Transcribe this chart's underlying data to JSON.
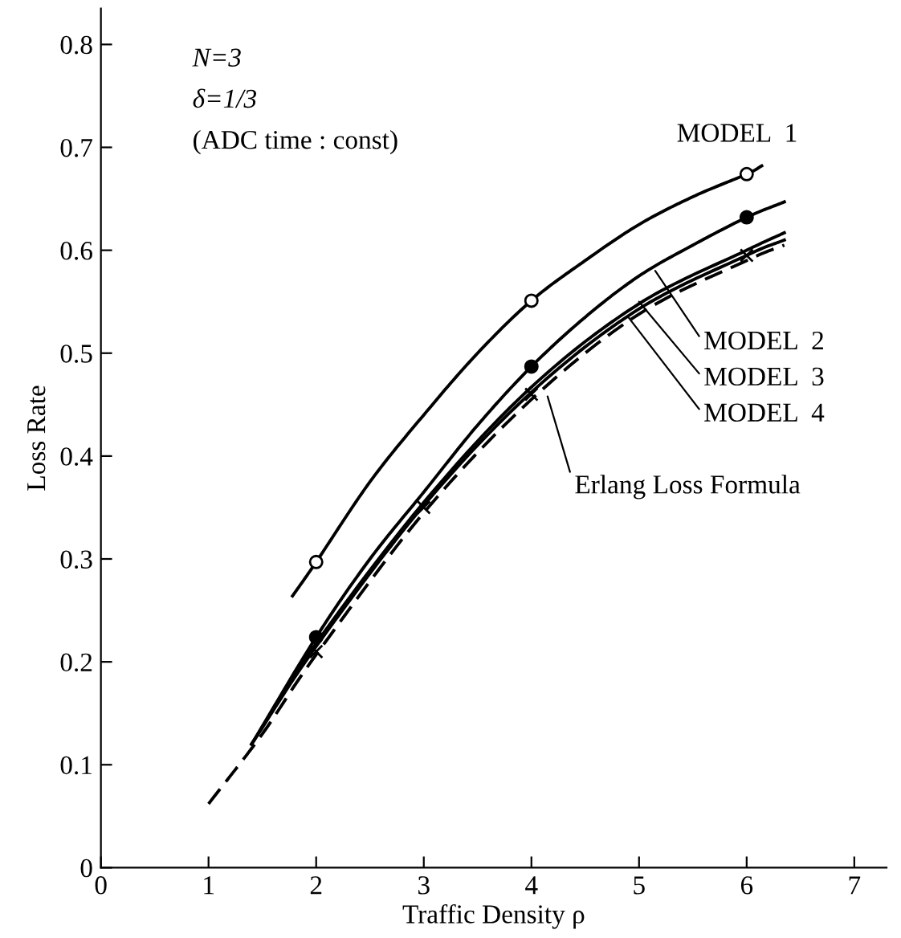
{
  "chart_data": {
    "type": "line",
    "xlabel": "Traffic Density ρ",
    "ylabel": "Loss Rate",
    "xlim": [
      0,
      7.3
    ],
    "ylim": [
      0,
      0.835
    ],
    "xticks": [
      0,
      1,
      2,
      3,
      4,
      5,
      6,
      7
    ],
    "yticks": [
      0,
      0.1,
      0.2,
      0.3,
      0.4,
      0.5,
      0.6,
      0.7,
      0.8
    ],
    "grid": false,
    "legend": false,
    "series": [
      {
        "color": "#000000",
        "line_style": "solid",
        "marker": "none",
        "x": [
          1.78,
          2,
          2.5,
          3,
          3.5,
          4,
          4.5,
          5,
          5.5,
          6,
          6.14
        ],
        "values": [
          0.264,
          0.297,
          0.375,
          0.44,
          0.5,
          0.551,
          0.59,
          0.625,
          0.652,
          0.674,
          0.682
        ]
      },
      {
        "color": "#000000",
        "line_style": "solid",
        "marker": "none",
        "x": [
          1.4,
          2,
          2.5,
          3,
          3.5,
          4,
          4.5,
          5,
          5.5,
          6,
          6.35
        ],
        "values": [
          0.12,
          0.224,
          0.3,
          0.365,
          0.43,
          0.487,
          0.535,
          0.575,
          0.605,
          0.632,
          0.647
        ]
      },
      {
        "color": "#000000",
        "line_style": "solid",
        "marker": "none",
        "x": [
          1.4,
          2,
          3,
          4,
          5,
          6,
          6.35
        ],
        "values": [
          0.12,
          0.218,
          0.355,
          0.467,
          0.548,
          0.6,
          0.617
        ]
      },
      {
        "color": "#000000",
        "line_style": "solid",
        "marker": "none",
        "x": [
          1.4,
          2,
          3,
          4,
          5,
          6,
          6.35
        ],
        "values": [
          0.12,
          0.215,
          0.352,
          0.462,
          0.543,
          0.595,
          0.61
        ]
      },
      {
        "color": "#000000",
        "line_style": "dashed",
        "marker": "none",
        "x": [
          1,
          1.5,
          2,
          3,
          4,
          5,
          6,
          6.35
        ],
        "values": [
          0.062,
          0.13,
          0.207,
          0.345,
          0.455,
          0.538,
          0.59,
          0.605
        ]
      },
      {
        "type": "scatter",
        "color": "#ffffff",
        "marker": "circle",
        "x": [
          2,
          4,
          6
        ],
        "values": [
          0.297,
          0.551,
          0.674
        ]
      },
      {
        "type": "scatter",
        "color": "#000000",
        "marker": "circle",
        "x": [
          2,
          4,
          6
        ],
        "values": [
          0.224,
          0.487,
          0.632
        ]
      },
      {
        "type": "scatter",
        "color": "#000000",
        "marker": "cross",
        "x": [
          2,
          3,
          4,
          6
        ],
        "values": [
          0.21,
          0.35,
          0.46,
          0.595
        ]
      }
    ],
    "annotations": [
      "N=3",
      "δ=1/3",
      "(ADC time : const)",
      {
        "text": "MODEL  1",
        "x": 6.14,
        "y": 0.682
      },
      {
        "text": "MODEL  2",
        "x": 5.15,
        "y": 0.58
      },
      {
        "text": "MODEL  3",
        "x": 5.0,
        "y": 0.55
      },
      {
        "text": "MODEL  4",
        "x": 4.9,
        "y": 0.535
      },
      {
        "text": "Erlang Loss Formula",
        "x": 4.15,
        "y": 0.458
      }
    ]
  }
}
